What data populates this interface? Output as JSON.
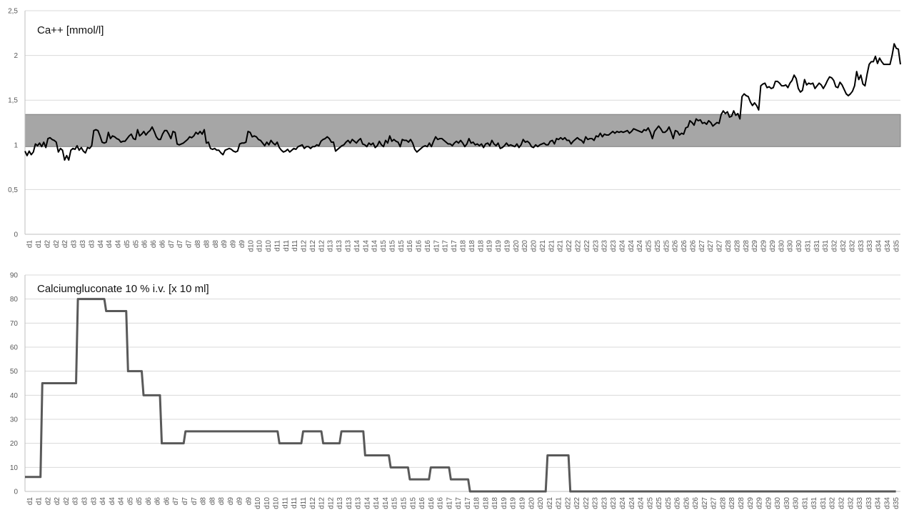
{
  "chart_data": [
    {
      "type": "line",
      "title": "Ca++ [mmol/l]",
      "xlabel": "",
      "ylabel": "",
      "ylim": [
        0,
        2.5
      ],
      "yticks": [
        "0",
        "0,5",
        "1",
        "1,5",
        "2",
        "2,5"
      ],
      "ytick_values": [
        0,
        0.5,
        1,
        1.5,
        2,
        2.5
      ],
      "grid": true,
      "reference_band": {
        "from": 0.98,
        "to": 1.34,
        "color": "#a6a6a6"
      },
      "line_color": "#000000",
      "x_tick_labels": [
        "d1",
        "d1",
        "d2",
        "d2",
        "d2",
        "d3",
        "d3",
        "d3",
        "d4",
        "d4",
        "d4",
        "d5",
        "d5",
        "d6",
        "d6",
        "d6",
        "d7",
        "d7",
        "d7",
        "d8",
        "d8",
        "d8",
        "d9",
        "d9",
        "d9",
        "d10",
        "d10",
        "d10",
        "d11",
        "d11",
        "d11",
        "d12",
        "d12",
        "d12",
        "d13",
        "d13",
        "d13",
        "d14",
        "d14",
        "d14",
        "d15",
        "d15",
        "d15",
        "d16",
        "d16",
        "d16",
        "d17",
        "d17",
        "d17",
        "d18",
        "d18",
        "d18",
        "d19",
        "d19",
        "d19",
        "d20",
        "d20",
        "d20",
        "d21",
        "d21",
        "d21",
        "d22",
        "d22",
        "d22",
        "d23",
        "d23",
        "d23",
        "d24",
        "d24",
        "d24",
        "d25",
        "d25",
        "d25",
        "d26",
        "d26",
        "d26",
        "d27",
        "d27",
        "d27",
        "d28",
        "d28",
        "d28",
        "d29",
        "d29",
        "d29",
        "d30",
        "d30",
        "d30",
        "d31",
        "d31",
        "d31",
        "d32",
        "d32",
        "d32",
        "d33",
        "d33",
        "d34",
        "d34",
        "d35"
      ],
      "series": [
        {
          "values": [
            0.93,
            0.88,
            0.93,
            0.89,
            0.92,
            1.01,
            0.99,
            1.02,
            0.98,
            1.03,
            0.97,
            1.07,
            1.08,
            1.06,
            1.05,
            1.03,
            0.92,
            0.96,
            0.94,
            0.83,
            0.88,
            0.83,
            0.94,
            0.96,
            0.95,
            0.99,
            0.94,
            0.97,
            0.93,
            0.91,
            0.97,
            0.96,
            0.99,
            1.16,
            1.17,
            1.16,
            1.1,
            1.03,
            1.02,
            1.03,
            1.14,
            1.07,
            1.1,
            1.09,
            1.07,
            1.06,
            1.03,
            1.04,
            1.04,
            1.07,
            1.1,
            1.12,
            1.07,
            1.06,
            1.17,
            1.1,
            1.12,
            1.15,
            1.11,
            1.14,
            1.16,
            1.2,
            1.15,
            1.09,
            1.06,
            1.06,
            1.12,
            1.16,
            1.16,
            1.12,
            1.07,
            1.15,
            1.14,
            1.01,
            1.0,
            1.01,
            1.02,
            1.04,
            1.06,
            1.09,
            1.08,
            1.1,
            1.14,
            1.12,
            1.15,
            1.12,
            1.17,
            1.02,
            1.03,
            0.96,
            0.95,
            0.96,
            0.94,
            0.94,
            0.91,
            0.89,
            0.94,
            0.95,
            0.96,
            0.95,
            0.93,
            0.92,
            0.93,
            1.01,
            1.02,
            1.02,
            1.03,
            1.15,
            1.14,
            1.09,
            1.1,
            1.09,
            1.06,
            1.05,
            1.02,
            0.99,
            1.03,
            1.0,
            1.05,
            1.02,
            1.0,
            1.03,
            0.97,
            0.94,
            0.92,
            0.93,
            0.95,
            0.92,
            0.94,
            0.96,
            0.95,
            0.98,
            0.99,
            1.0,
            0.96,
            0.98,
            0.98,
            0.96,
            0.98,
            0.98,
            1.0,
            0.99,
            1.04,
            1.06,
            1.07,
            1.09,
            1.07,
            1.03,
            1.03,
            0.93,
            0.95,
            0.97,
            0.99,
            1.0,
            1.03,
            1.05,
            1.02,
            1.06,
            1.04,
            1.02,
            1.05,
            1.07,
            1.01,
            1.0,
            0.98,
            1.02,
            1.0,
            1.02,
            0.97,
            0.99,
            1.04,
            1.0,
            0.98,
            1.05,
            1.02,
            1.1,
            1.04,
            1.06,
            1.04,
            1.03,
            0.98,
            1.06,
            1.05,
            1.05,
            1.03,
            1.06,
            1.02,
            0.95,
            0.92,
            0.94,
            0.96,
            0.98,
            0.99,
            0.98,
            1.02,
            0.98,
            1.04,
            1.09,
            1.06,
            1.07,
            1.07,
            1.05,
            1.03,
            1.01,
            1.01,
            0.99,
            1.02,
            1.04,
            1.02,
            1.05,
            1.02,
            0.98,
            1.01,
            1.07,
            1.02,
            1.03,
            1.0,
            1.01,
            0.99,
            1.01,
            0.97,
            1.01,
            1.02,
            0.99,
            1.05,
            1.01,
            0.99,
            1.02,
            0.96,
            0.97,
            0.99,
            1.02,
            0.99,
            1.0,
            0.99,
            0.98,
            1.01,
            0.97,
            1.0,
            1.06,
            1.03,
            1.04,
            1.02,
            0.98,
            0.97,
            1.0,
            0.98,
            1.0,
            1.01,
            1.02,
            1.0,
            1.0,
            1.04,
            1.05,
            1.01,
            1.07,
            1.06,
            1.08,
            1.06,
            1.08,
            1.05,
            1.05,
            1.01,
            1.04,
            1.06,
            1.08,
            1.06,
            1.05,
            1.02,
            1.09,
            1.06,
            1.07,
            1.07,
            1.05,
            1.1,
            1.09,
            1.13,
            1.09,
            1.12,
            1.11,
            1.11,
            1.13,
            1.15,
            1.13,
            1.15,
            1.14,
            1.15,
            1.14,
            1.15,
            1.16,
            1.13,
            1.15,
            1.18,
            1.17,
            1.16,
            1.15,
            1.14,
            1.17,
            1.16,
            1.19,
            1.14,
            1.07,
            1.15,
            1.18,
            1.21,
            1.18,
            1.14,
            1.14,
            1.16,
            1.2,
            1.14,
            1.07,
            1.16,
            1.15,
            1.11,
            1.13,
            1.12,
            1.19,
            1.2,
            1.27,
            1.25,
            1.22,
            1.29,
            1.27,
            1.28,
            1.24,
            1.25,
            1.23,
            1.27,
            1.25,
            1.21,
            1.23,
            1.25,
            1.24,
            1.34,
            1.38,
            1.35,
            1.37,
            1.31,
            1.32,
            1.38,
            1.33,
            1.35,
            1.29,
            1.54,
            1.57,
            1.55,
            1.54,
            1.48,
            1.44,
            1.47,
            1.44,
            1.39,
            1.66,
            1.68,
            1.69,
            1.64,
            1.65,
            1.63,
            1.64,
            1.71,
            1.71,
            1.69,
            1.66,
            1.66,
            1.67,
            1.64,
            1.69,
            1.72,
            1.78,
            1.74,
            1.63,
            1.59,
            1.61,
            1.73,
            1.67,
            1.69,
            1.68,
            1.69,
            1.63,
            1.66,
            1.69,
            1.67,
            1.63,
            1.67,
            1.72,
            1.76,
            1.75,
            1.72,
            1.65,
            1.64,
            1.7,
            1.67,
            1.62,
            1.57,
            1.55,
            1.57,
            1.6,
            1.66,
            1.82,
            1.73,
            1.78,
            1.68,
            1.66,
            1.79,
            1.9,
            1.93,
            1.93,
            1.99,
            1.91,
            1.97,
            1.93,
            1.9,
            1.9,
            1.9,
            1.9,
            2.0,
            2.13,
            2.08,
            2.07,
            1.9
          ]
        }
      ]
    },
    {
      "type": "line",
      "title": "Calciumgluconate 10 % i.v. [x 10 ml]",
      "xlabel": "",
      "ylabel": "",
      "ylim": [
        0,
        90
      ],
      "yticks": [
        "0",
        "10",
        "20",
        "30",
        "40",
        "50",
        "60",
        "70",
        "80",
        "90"
      ],
      "ytick_values": [
        0,
        10,
        20,
        30,
        40,
        50,
        60,
        70,
        80,
        90
      ],
      "grid": true,
      "line_color": "#595959",
      "x_tick_labels": [
        "d1",
        "d1",
        "d2",
        "d2",
        "d2",
        "d3",
        "d3",
        "d3",
        "d4",
        "d4",
        "d4",
        "d5",
        "d5",
        "d6",
        "d6",
        "d6",
        "d7",
        "d7",
        "d7",
        "d8",
        "d8",
        "d8",
        "d9",
        "d9",
        "d9",
        "d10",
        "d10",
        "d10",
        "d11",
        "d11",
        "d11",
        "d12",
        "d12",
        "d12",
        "d13",
        "d13",
        "d13",
        "d14",
        "d14",
        "d14",
        "d15",
        "d15",
        "d15",
        "d16",
        "d16",
        "d16",
        "d17",
        "d17",
        "d17",
        "d18",
        "d18",
        "d18",
        "d19",
        "d19",
        "d19",
        "d20",
        "d20",
        "d21",
        "d21",
        "d22",
        "d22",
        "d22",
        "d23",
        "d23",
        "d23",
        "d24",
        "d24",
        "d24",
        "d25",
        "d25",
        "d25",
        "d26",
        "d26",
        "d26",
        "d27",
        "d27",
        "d28",
        "d28",
        "d28",
        "d29",
        "d29",
        "d29",
        "d30",
        "d30",
        "d30",
        "d31",
        "d31",
        "d31",
        "d32",
        "d32",
        "d32",
        "d33",
        "d33",
        "d34",
        "d34",
        "d35"
      ],
      "series": [
        {
          "steps": [
            {
              "x": 0,
              "y": 6
            },
            {
              "x": 1.7,
              "y": 6
            },
            {
              "x": 1.9,
              "y": 45
            },
            {
              "x": 5.6,
              "y": 45
            },
            {
              "x": 5.8,
              "y": 80
            },
            {
              "x": 8.7,
              "y": 80
            },
            {
              "x": 8.9,
              "y": 75
            },
            {
              "x": 11.1,
              "y": 75
            },
            {
              "x": 11.3,
              "y": 50
            },
            {
              "x": 12.8,
              "y": 50
            },
            {
              "x": 13.0,
              "y": 40
            },
            {
              "x": 14.8,
              "y": 40
            },
            {
              "x": 15.0,
              "y": 20
            },
            {
              "x": 17.4,
              "y": 20
            },
            {
              "x": 17.6,
              "y": 25
            },
            {
              "x": 27.7,
              "y": 25
            },
            {
              "x": 27.9,
              "y": 20
            },
            {
              "x": 30.3,
              "y": 20
            },
            {
              "x": 30.5,
              "y": 25
            },
            {
              "x": 32.5,
              "y": 25
            },
            {
              "x": 32.7,
              "y": 20
            },
            {
              "x": 34.5,
              "y": 20
            },
            {
              "x": 34.7,
              "y": 25
            },
            {
              "x": 37.1,
              "y": 25
            },
            {
              "x": 37.3,
              "y": 15
            },
            {
              "x": 39.9,
              "y": 15
            },
            {
              "x": 40.1,
              "y": 10
            },
            {
              "x": 42.0,
              "y": 10
            },
            {
              "x": 42.2,
              "y": 5
            },
            {
              "x": 44.3,
              "y": 5
            },
            {
              "x": 44.5,
              "y": 10
            },
            {
              "x": 46.5,
              "y": 10
            },
            {
              "x": 46.7,
              "y": 5
            },
            {
              "x": 48.6,
              "y": 5
            },
            {
              "x": 48.8,
              "y": 0
            },
            {
              "x": 57.1,
              "y": 0
            },
            {
              "x": 57.3,
              "y": 15
            },
            {
              "x": 59.6,
              "y": 15
            },
            {
              "x": 59.8,
              "y": 0
            },
            {
              "x": 95.5,
              "y": 0
            }
          ]
        }
      ]
    }
  ]
}
